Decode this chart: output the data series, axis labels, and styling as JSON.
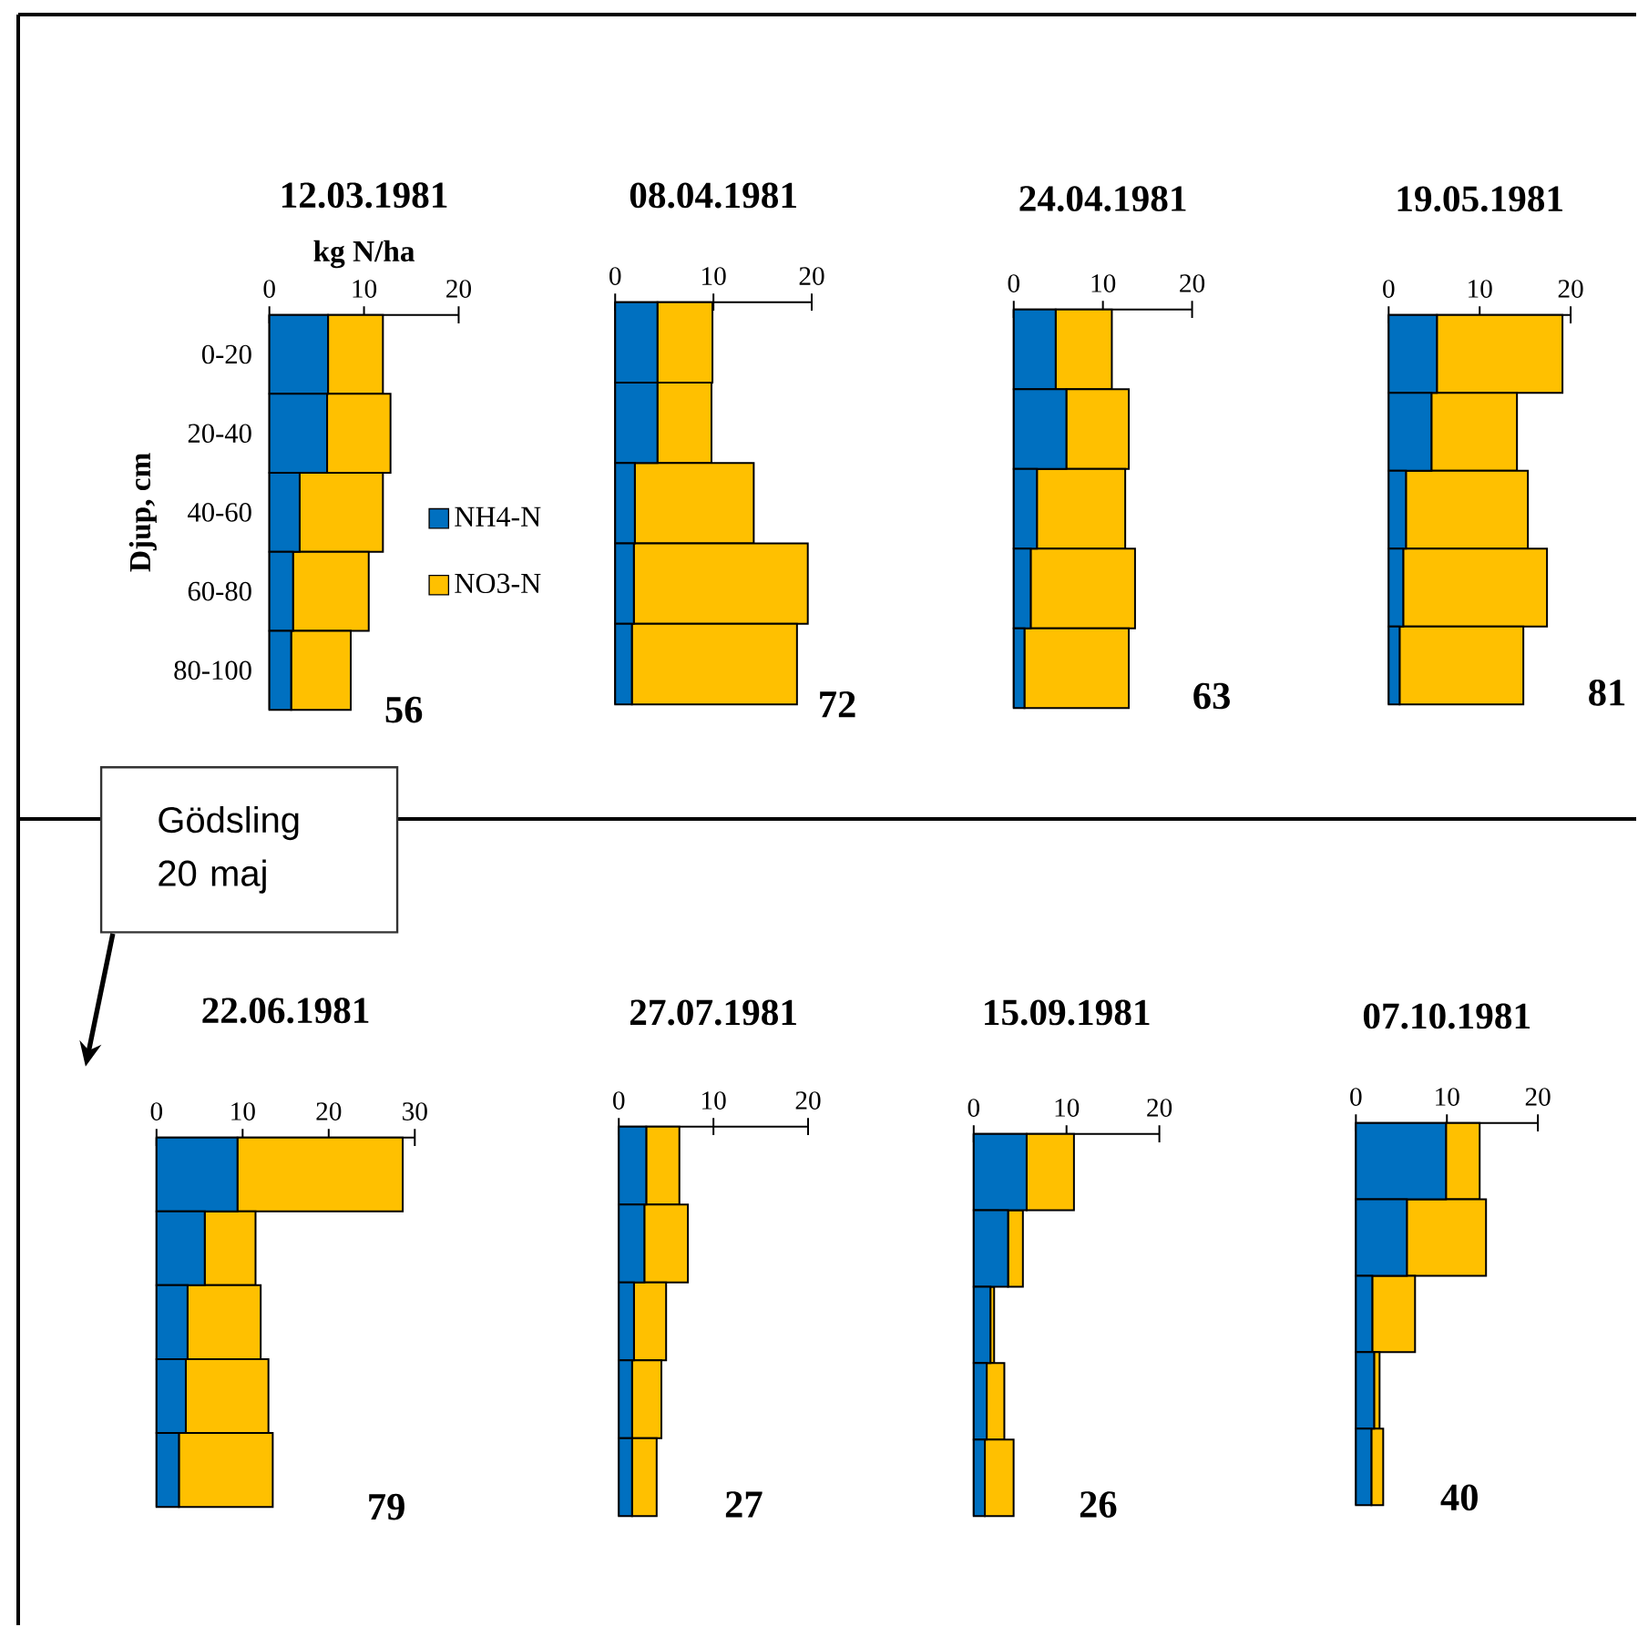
{
  "chart_data": [
    {
      "type": "bar",
      "orientation": "horizontal",
      "stacked": true,
      "title": "12.03.1981",
      "xlabel": "kg N/ha",
      "ylabel": "Djup, cm",
      "legend": "right",
      "categories": [
        "0-20",
        "20-40",
        "40-60",
        "60-80",
        "80-100"
      ],
      "series": [
        {
          "name": "NH4-N",
          "color": "#0070c0",
          "values": [
            6.2,
            6.1,
            3.2,
            2.5,
            2.3
          ]
        },
        {
          "name": "NO3-N",
          "color": "#ffc000",
          "values": [
            5.8,
            6.7,
            8.8,
            8.0,
            6.3
          ]
        }
      ],
      "xlim": [
        0,
        20
      ],
      "xticks": [
        0,
        10,
        20
      ],
      "annotations": [
        "56"
      ]
    },
    {
      "type": "bar",
      "orientation": "horizontal",
      "stacked": true,
      "title": "08.04.1981",
      "tick_labels": "x",
      "categories": [
        null,
        null,
        null,
        null,
        null
      ],
      "series": [
        {
          "color": "#0070c0",
          "values": [
            4.3,
            4.3,
            2.0,
            1.9,
            1.7
          ]
        },
        {
          "color": "#ffc000",
          "values": [
            5.6,
            5.5,
            12.1,
            17.7,
            16.8
          ]
        }
      ],
      "xlim": [
        0,
        20
      ],
      "xticks": [
        0,
        10,
        20
      ],
      "annotations": [
        "72"
      ]
    },
    {
      "type": "bar",
      "orientation": "horizontal",
      "stacked": true,
      "title": "24.04.1981",
      "tick_labels": "x",
      "categories": [
        null,
        null,
        null,
        null,
        null
      ],
      "series": [
        {
          "color": "#0070c0",
          "values": [
            4.7,
            5.9,
            2.6,
            1.9,
            1.2
          ]
        },
        {
          "color": "#ffc000",
          "values": [
            6.3,
            7.0,
            9.9,
            11.7,
            11.7
          ]
        }
      ],
      "xlim": [
        0,
        20
      ],
      "xticks": [
        0,
        10,
        20
      ],
      "annotations": [
        "63"
      ]
    },
    {
      "type": "bar",
      "orientation": "horizontal",
      "stacked": true,
      "title": "19.05.1981",
      "tick_labels": "x",
      "categories": [
        null,
        null,
        null,
        null,
        null
      ],
      "series": [
        {
          "color": "#0070c0",
          "values": [
            5.3,
            4.7,
            1.9,
            1.6,
            1.2
          ]
        },
        {
          "color": "#ffc000",
          "values": [
            13.8,
            9.4,
            13.4,
            15.8,
            13.6
          ]
        }
      ],
      "xlim": [
        0,
        20
      ],
      "xticks": [
        0,
        10,
        20
      ],
      "annotations": [
        "81"
      ]
    },
    {
      "type": "bar",
      "orientation": "horizontal",
      "stacked": true,
      "title": "22.06.1981",
      "tick_labels": "x",
      "categories": [
        null,
        null,
        null,
        null,
        null
      ],
      "series": [
        {
          "color": "#0070c0",
          "values": [
            9.4,
            5.6,
            3.6,
            3.4,
            2.6
          ]
        },
        {
          "color": "#ffc000",
          "values": [
            19.2,
            5.9,
            8.5,
            9.6,
            10.9
          ]
        }
      ],
      "xlim": [
        0,
        30
      ],
      "xticks": [
        0,
        10,
        20,
        30
      ],
      "annotations": [
        "79",
        "Gödsling 20 maj"
      ]
    },
    {
      "type": "bar",
      "orientation": "horizontal",
      "stacked": true,
      "title": "27.07.1981",
      "tick_labels": "x",
      "categories": [
        null,
        null,
        null,
        null,
        null
      ],
      "series": [
        {
          "color": "#0070c0",
          "values": [
            2.9,
            2.7,
            1.6,
            1.4,
            1.4
          ]
        },
        {
          "color": "#ffc000",
          "values": [
            3.5,
            4.6,
            3.4,
            3.1,
            2.6
          ]
        }
      ],
      "xlim": [
        0,
        20
      ],
      "xticks": [
        0,
        10,
        20
      ],
      "annotations": [
        "27"
      ]
    },
    {
      "type": "bar",
      "orientation": "horizontal",
      "stacked": true,
      "title": "15.09.1981",
      "tick_labels": "x",
      "categories": [
        null,
        null,
        null,
        null,
        null
      ],
      "series": [
        {
          "color": "#0070c0",
          "values": [
            5.7,
            3.7,
            1.8,
            1.4,
            1.2
          ]
        },
        {
          "color": "#ffc000",
          "values": [
            5.1,
            1.6,
            0.4,
            1.9,
            3.1
          ]
        }
      ],
      "xlim": [
        0,
        20
      ],
      "xticks": [
        0,
        10,
        20
      ],
      "annotations": [
        "26"
      ]
    },
    {
      "type": "bar",
      "orientation": "horizontal",
      "stacked": true,
      "title": "07.10.1981",
      "tick_labels": "x",
      "categories": [
        null,
        null,
        null,
        null,
        null
      ],
      "series": [
        {
          "color": "#0070c0",
          "values": [
            9.9,
            5.6,
            1.8,
            2.0,
            1.7
          ]
        },
        {
          "color": "#ffc000",
          "values": [
            3.7,
            8.7,
            4.7,
            0.6,
            1.3
          ]
        }
      ],
      "xlim": [
        0,
        20
      ],
      "xticks": [
        0,
        10,
        20
      ],
      "annotations": [
        "40"
      ]
    }
  ]
}
